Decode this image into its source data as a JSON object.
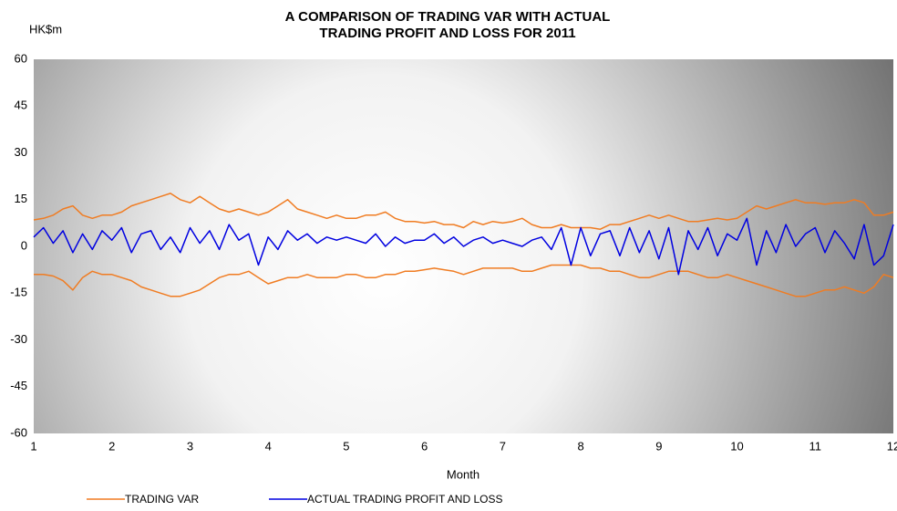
{
  "chart_data": {
    "type": "line",
    "title": "A COMPARISON OF TRADING VAR WITH ACTUAL TRADING PROFIT AND LOSS FOR 2011",
    "y_label": "HK$m",
    "x_label": "Month",
    "x": [
      1,
      1.125,
      1.25,
      1.375,
      1.5,
      1.625,
      1.75,
      1.875,
      2,
      2.125,
      2.25,
      2.375,
      2.5,
      2.625,
      2.75,
      2.875,
      3,
      3.125,
      3.25,
      3.375,
      3.5,
      3.625,
      3.75,
      3.875,
      4,
      4.125,
      4.25,
      4.375,
      4.5,
      4.625,
      4.75,
      4.875,
      5,
      5.125,
      5.25,
      5.375,
      5.5,
      5.625,
      5.75,
      5.875,
      6,
      6.125,
      6.25,
      6.375,
      6.5,
      6.625,
      6.75,
      6.875,
      7,
      7.125,
      7.25,
      7.375,
      7.5,
      7.625,
      7.75,
      7.875,
      8,
      8.125,
      8.25,
      8.375,
      8.5,
      8.625,
      8.75,
      8.875,
      9,
      9.125,
      9.25,
      9.375,
      9.5,
      9.625,
      9.75,
      9.875,
      10,
      10.125,
      10.25,
      10.375,
      10.5,
      10.625,
      10.75,
      10.875,
      11,
      11.125,
      11.25,
      11.375,
      11.5,
      11.625,
      11.75,
      11.875,
      12
    ],
    "series": [
      {
        "name": "TRADING VAR",
        "color": "#f07c22",
        "values": [
          8.5,
          9,
          10,
          12,
          13,
          10,
          9,
          10,
          10,
          11,
          13,
          14,
          15,
          16,
          17,
          15,
          14,
          16,
          14,
          12,
          11,
          12,
          11,
          10,
          11,
          13,
          15,
          12,
          11,
          10,
          9,
          10,
          9,
          9,
          10,
          10,
          11,
          9,
          8,
          8,
          7.5,
          8,
          7,
          7,
          6,
          8,
          7,
          8,
          7.5,
          8,
          9,
          7,
          6,
          6,
          7,
          6,
          6,
          6,
          5.5,
          7,
          7,
          8,
          9,
          10,
          9,
          10,
          9,
          8,
          8,
          8.5,
          9,
          8.5,
          9,
          11,
          13,
          12,
          13,
          14,
          15,
          14,
          14,
          13.5,
          14,
          14,
          15,
          14,
          10,
          10,
          11
        ]
      },
      {
        "color": "#f07c22",
        "values": [
          -9,
          -9,
          -9.5,
          -11,
          -14,
          -10,
          -8,
          -9,
          -9,
          -10,
          -11,
          -13,
          -14,
          -15,
          -16,
          -16,
          -15,
          -14,
          -12,
          -10,
          -9,
          -9,
          -8,
          -10,
          -12,
          -11,
          -10,
          -10,
          -9,
          -10,
          -10,
          -10,
          -9,
          -9,
          -10,
          -10,
          -9,
          -9,
          -8,
          -8,
          -7.5,
          -7,
          -7.5,
          -8,
          -9,
          -8,
          -7,
          -7,
          -7,
          -7,
          -8,
          -8,
          -7,
          -6,
          -6,
          -6,
          -6,
          -7,
          -7,
          -8,
          -8,
          -9,
          -10,
          -10,
          -9,
          -8,
          -8,
          -8,
          -9,
          -10,
          -10,
          -9,
          -10,
          -11,
          -12,
          -13,
          -14,
          -15,
          -16,
          -16,
          -15,
          -14,
          -14,
          -13,
          -14,
          -15,
          -13,
          -9,
          -10
        ]
      },
      {
        "name": "ACTUAL TRADING PROFIT AND LOSS",
        "color": "#0000e0",
        "values": [
          3,
          6,
          1,
          5,
          -2,
          4,
          -1,
          5,
          2,
          6,
          -2,
          4,
          5,
          -1,
          3,
          -2,
          6,
          1,
          5,
          -1,
          7,
          2,
          4,
          -6,
          3,
          -1,
          5,
          2,
          4,
          1,
          3,
          2,
          3,
          2,
          1,
          4,
          0,
          3,
          1,
          2,
          2,
          4,
          1,
          3,
          0,
          2,
          3,
          1,
          2,
          1,
          0,
          2,
          3,
          -1,
          6,
          -6,
          6,
          -3,
          4,
          5,
          -3,
          6,
          -2,
          5,
          -4,
          6,
          -9,
          5,
          -1,
          6,
          -3,
          4,
          2,
          9,
          -6,
          5,
          -2,
          7,
          0,
          4,
          6,
          -2,
          5,
          1,
          -4,
          7,
          -6,
          -3,
          7
        ]
      }
    ],
    "xlim": [
      1,
      12
    ],
    "xticks": [
      1,
      2,
      3,
      4,
      5,
      6,
      7,
      8,
      9,
      10,
      11,
      12
    ],
    "ylim": [
      -60,
      60
    ],
    "yticks": [
      -60,
      -45,
      -30,
      -15,
      0,
      15,
      30,
      45,
      60
    ],
    "background": "gradient"
  }
}
